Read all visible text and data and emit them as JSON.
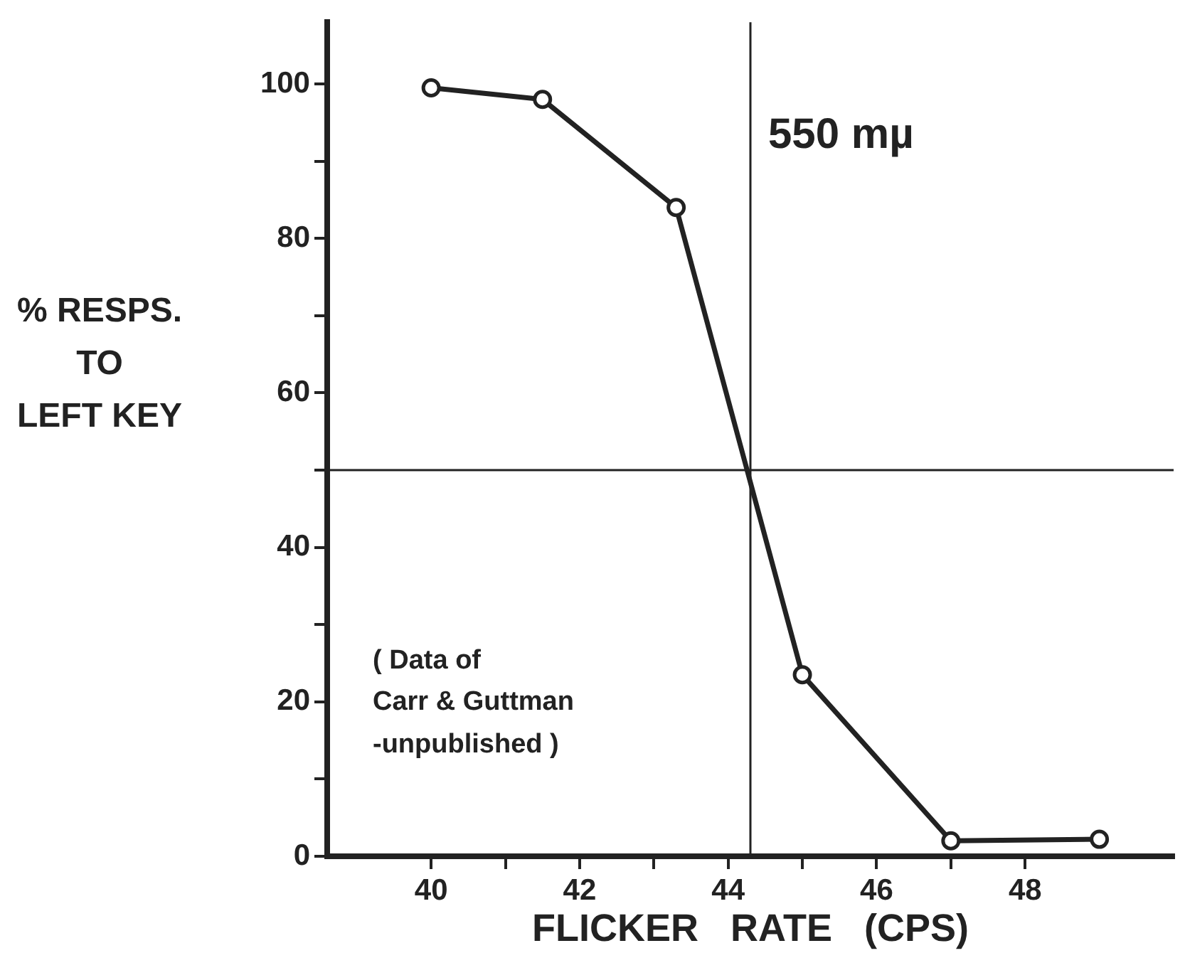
{
  "chart_data": {
    "type": "line",
    "xlabel": "FLICKER   RATE   (CPS)",
    "ylabel": "% RESPS.\nTO\nLEFT KEY",
    "annotations": [
      "550 mµ",
      "( Data of\nCarr & Guttman\n-unpublished )"
    ],
    "x": [
      40,
      41.5,
      43.3,
      45,
      47,
      49
    ],
    "series": [
      {
        "color": "#222222",
        "values": [
          99.5,
          98,
          84,
          23.5,
          2,
          2.2
        ]
      }
    ],
    "xlim": [
      38.6,
      50
    ],
    "ylim": [
      0,
      108
    ],
    "xticks": [
      40,
      {
        "value": 41,
        "label": null
      },
      42,
      {
        "value": 43,
        "label": null
      },
      44,
      {
        "value": 45,
        "label": null
      },
      46,
      {
        "value": 47,
        "label": null
      },
      48
    ],
    "yticks": [
      0,
      {
        "value": 10,
        "label": null
      },
      20,
      {
        "value": 30,
        "label": null
      },
      40,
      {
        "value": 50,
        "label": null
      },
      60,
      {
        "value": 70,
        "label": null
      },
      80,
      {
        "value": 90,
        "label": null
      },
      100
    ],
    "ref_lines": [
      {
        "axis": "y",
        "value": 50,
        "color": "#222222"
      },
      {
        "axis": "x",
        "value": 44.3,
        "color": "#222222"
      }
    ],
    "grid": false,
    "legend": false,
    "marker": "circle",
    "line_style": "solid"
  }
}
